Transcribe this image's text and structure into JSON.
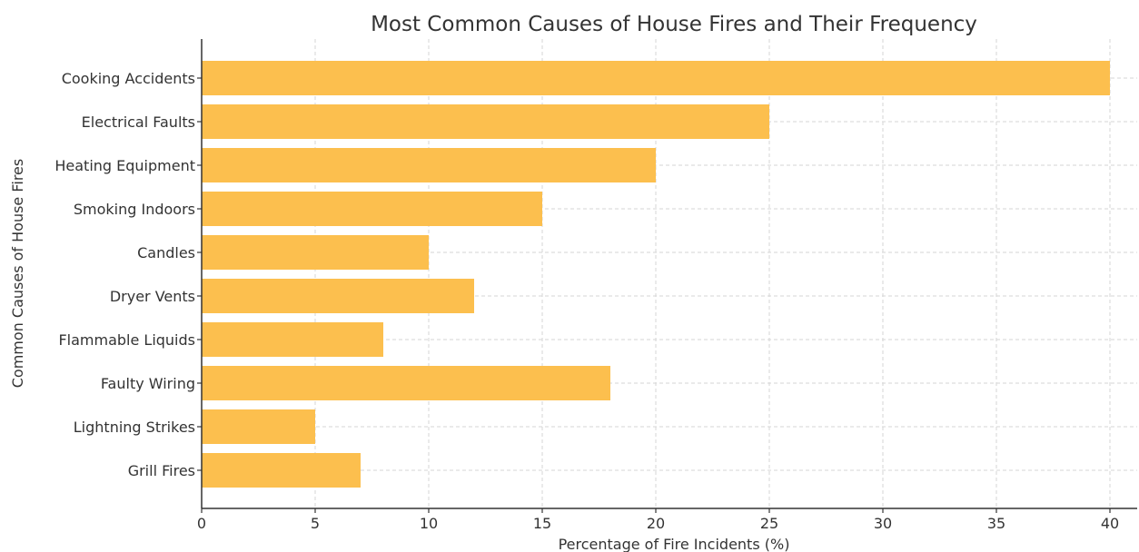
{
  "chart_data": {
    "type": "bar",
    "orientation": "horizontal",
    "title": "Most Common Causes of House Fires and Their Frequency",
    "xlabel": "Percentage of Fire Incidents (%)",
    "ylabel": "Common Causes of House Fires",
    "categories": [
      "Cooking Accidents",
      "Electrical Faults",
      "Heating Equipment",
      "Smoking Indoors",
      "Candles",
      "Dryer Vents",
      "Flammable Liquids",
      "Faulty Wiring",
      "Lightning Strikes",
      "Grill Fires"
    ],
    "values": [
      40,
      25,
      20,
      15,
      10,
      12,
      8,
      18,
      5,
      7
    ],
    "xlim": [
      0,
      41.2
    ],
    "xticks": [
      0,
      5,
      10,
      15,
      20,
      25,
      30,
      35,
      40
    ],
    "grid": true,
    "bar_color": "#fcbf4e"
  }
}
